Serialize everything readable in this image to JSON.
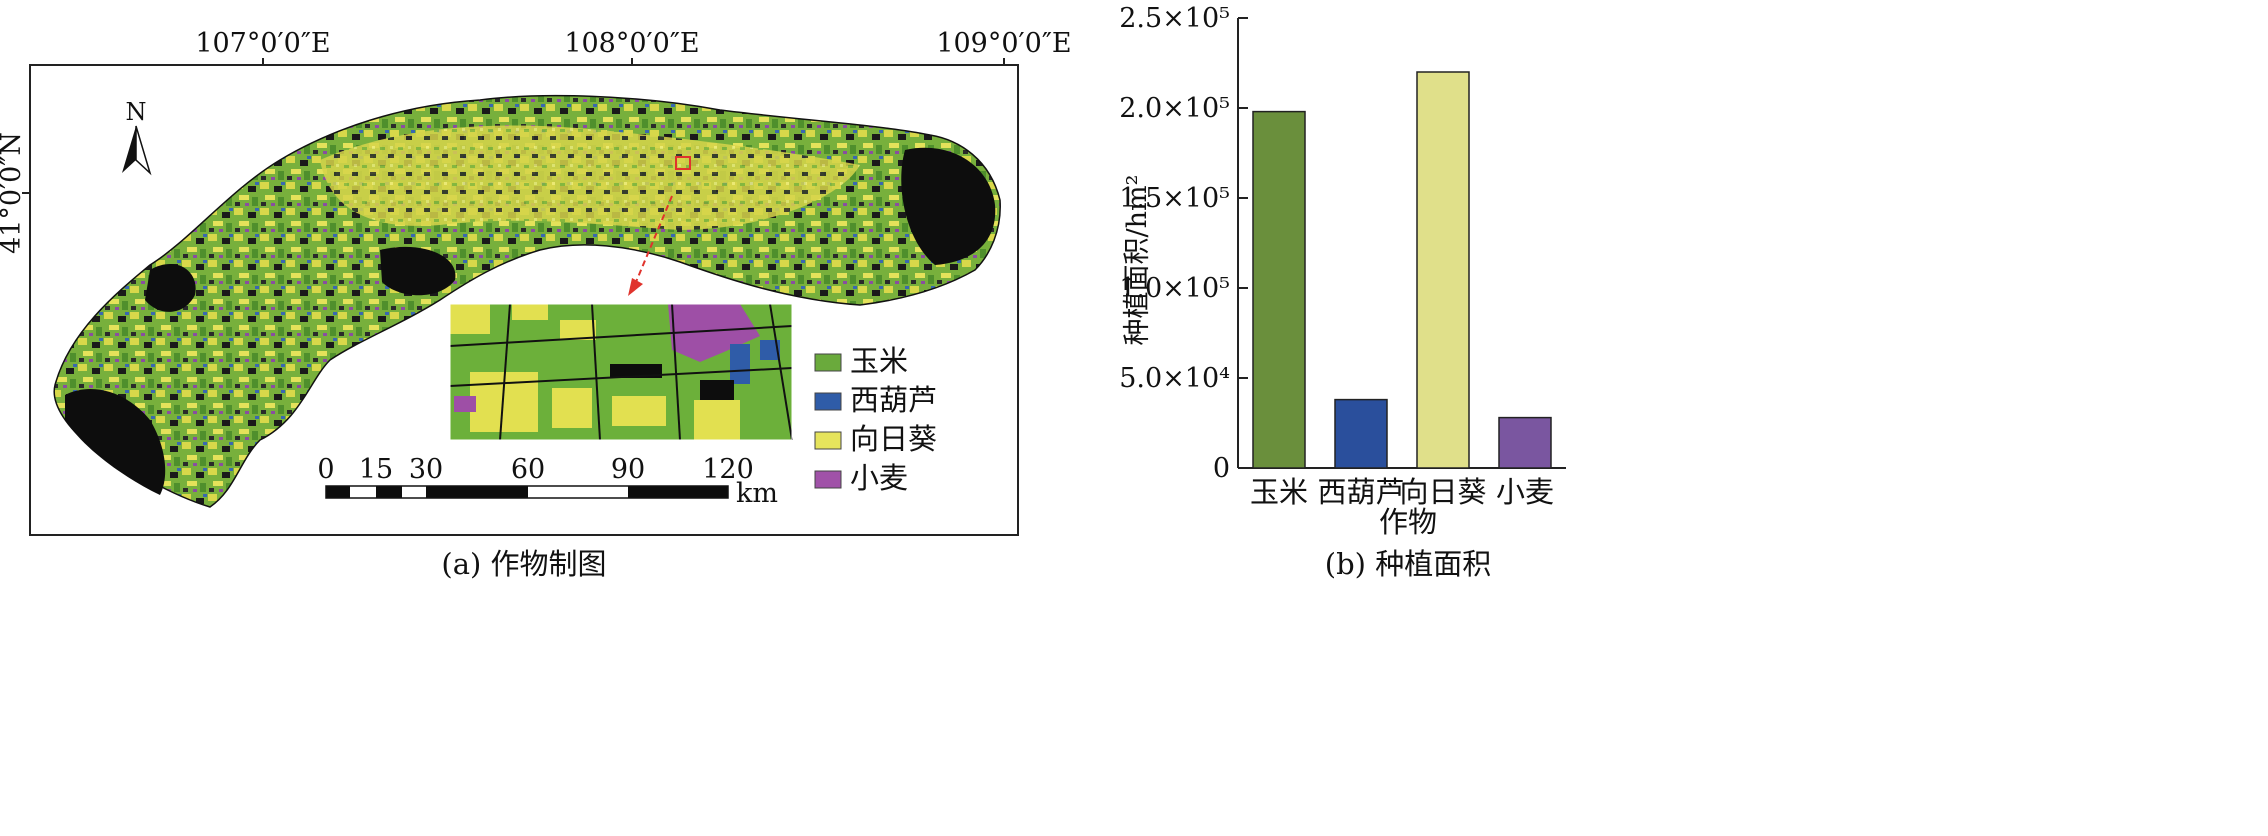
{
  "panel_a": {
    "lon_labels": [
      "107°0′0″E",
      "108°0′0″E",
      "109°0′0″E"
    ],
    "lat_label": "41°0′0″N",
    "north_label": "N",
    "legend": [
      {
        "label": "玉米",
        "color": "#6aaa3c"
      },
      {
        "label": "西葫芦",
        "color": "#2f5ca8"
      },
      {
        "label": "向日葵",
        "color": "#e6e45c"
      },
      {
        "label": "小麦",
        "color": "#a052a8"
      }
    ],
    "scale_ticks": [
      "0",
      "15",
      "30",
      "60",
      "90",
      "120"
    ],
    "scale_unit": "km",
    "caption": "(a) 作物制图"
  },
  "panel_b": {
    "caption": "(b) 种植面积"
  },
  "chart_data": {
    "type": "bar",
    "categories": [
      "玉米",
      "西葫芦",
      "向日葵",
      "小麦"
    ],
    "values": [
      198000,
      38000,
      220000,
      28000
    ],
    "colors": [
      "#6a8f3c",
      "#2a4f9c",
      "#e0e08a",
      "#7a56a0"
    ],
    "xlabel": "作物",
    "ylabel": "种植面积/hm²",
    "ylim": [
      0,
      250000
    ],
    "yticks": [
      {
        "value": 0,
        "label": "0"
      },
      {
        "value": 50000,
        "label": "5.0×10⁴"
      },
      {
        "value": 100000,
        "label": "1.0×10⁵"
      },
      {
        "value": 150000,
        "label": "1.5×10⁵"
      },
      {
        "value": 200000,
        "label": "2.0×10⁵"
      },
      {
        "value": 250000,
        "label": "2.5×10⁵"
      }
    ],
    "grid": false
  }
}
